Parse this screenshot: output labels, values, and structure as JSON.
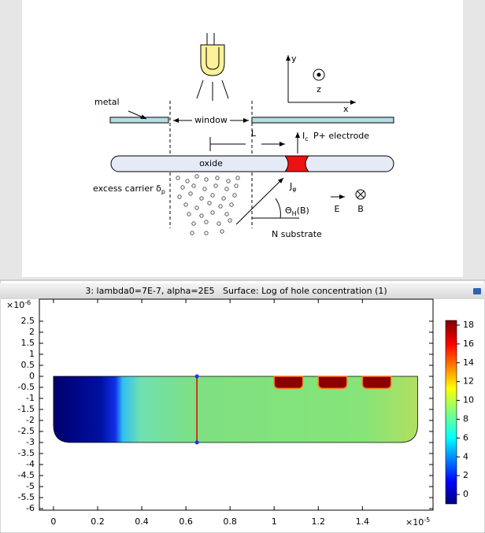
{
  "diagram": {
    "labels": {
      "metal": "metal",
      "window": "window",
      "L": "L",
      "ic": {
        "main": "I",
        "sub": "c"
      },
      "p_electrode": "P+ electrode",
      "oxide": "oxide",
      "excess_carrier": {
        "main": "excess carrier δ",
        "sub": "p"
      },
      "j": {
        "main": "J",
        "sub": "φ"
      },
      "theta": {
        "main": "Θ",
        "sub": "H",
        "tail": "(B)"
      },
      "e": "E",
      "b": "B",
      "n_substrate": "N substrate",
      "y": "y",
      "z": "z",
      "x": "x"
    }
  },
  "plot": {
    "title": "3: lambda0=7E-7, alpha=2E5   Surface: Log of hole concentration (1)",
    "x_exponent": {
      "base": "×10",
      "exp": "-5"
    },
    "y_exponent": {
      "base": "×10",
      "exp": "-6"
    },
    "xlim": [
      -0.064,
      1.72
    ],
    "xticks": [
      0,
      0.2,
      0.4,
      0.6,
      0.8,
      1,
      1.2,
      1.4
    ],
    "ylim": [
      -6.07,
      3.5
    ],
    "yticks": [
      2.5,
      2,
      1.5,
      1,
      0.5,
      0,
      -0.5,
      -1,
      -1.5,
      -2,
      -2.5,
      -3,
      -3.5,
      -4,
      -4.5,
      -5,
      -5.5,
      -6
    ],
    "clim": [
      -1,
      18.5
    ],
    "cticks": [
      0,
      2,
      4,
      6,
      8,
      10,
      12,
      14,
      16,
      18
    ]
  }
}
